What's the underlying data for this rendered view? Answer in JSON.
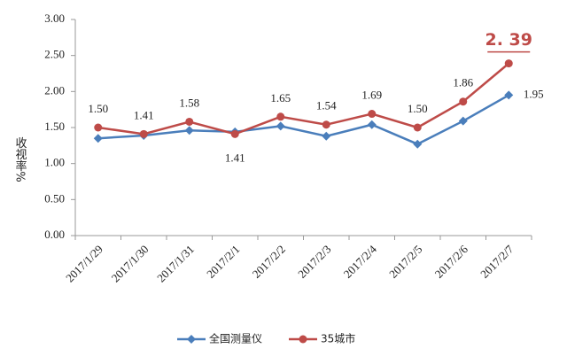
{
  "chart_data": {
    "type": "line",
    "y_label": "收视率%",
    "categories": [
      "2017/1/29",
      "2017/1/30",
      "2017/1/31",
      "2017/2/1",
      "2017/2/2",
      "2017/2/3",
      "2017/2/4",
      "2017/2/5",
      "2017/2/6",
      "2017/2/7"
    ],
    "series": [
      {
        "name": "全国测量仪",
        "color": "#4a7ebb",
        "marker": "diamond",
        "values": [
          1.35,
          1.39,
          1.46,
          1.44,
          1.52,
          1.38,
          1.54,
          1.27,
          1.59,
          1.95
        ],
        "value_labels": [
          null,
          null,
          null,
          null,
          null,
          null,
          null,
          null,
          null,
          "1.95"
        ]
      },
      {
        "name": "35城市",
        "color": "#be4b48",
        "marker": "circle",
        "values": [
          1.5,
          1.41,
          1.58,
          1.41,
          1.65,
          1.54,
          1.69,
          1.5,
          1.86,
          2.39
        ],
        "value_labels": [
          "1.50",
          "1.41",
          "1.58",
          "1.41",
          "1.65",
          "1.54",
          "1.69",
          "1.50",
          "1.86",
          "2. 39"
        ]
      }
    ],
    "ylim": [
      0,
      3
    ],
    "yticks": [
      {
        "value": 0,
        "label": "0.00"
      },
      {
        "value": 0.5,
        "label": "0.50"
      },
      {
        "value": 1,
        "label": "1.00"
      },
      {
        "value": 1.5,
        "label": "1.50"
      },
      {
        "value": 2,
        "label": "2.00"
      },
      {
        "value": 2.5,
        "label": "2.50"
      },
      {
        "value": 3,
        "label": "3.00"
      }
    ],
    "grid": false
  }
}
